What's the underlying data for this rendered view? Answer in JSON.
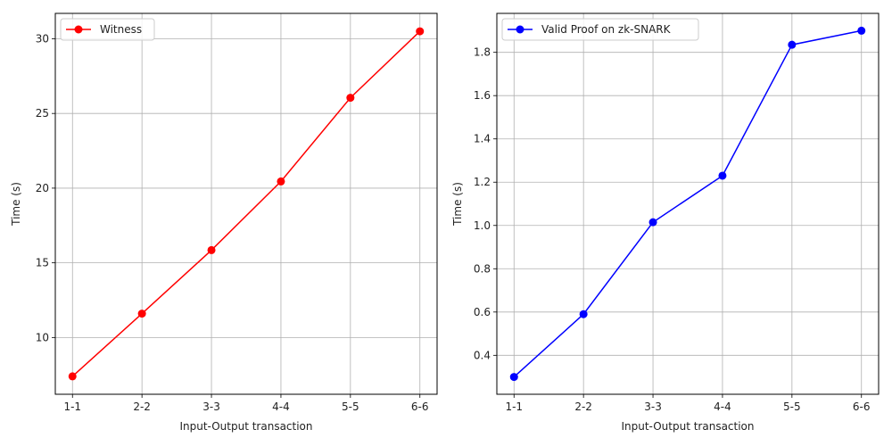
{
  "chart_data": [
    {
      "type": "line",
      "categories": [
        "1-1",
        "2-2",
        "3-3",
        "4-4",
        "5-5",
        "6-6"
      ],
      "series": [
        {
          "name": "Witness",
          "color": "#ff0000",
          "marker": "circle",
          "values": [
            7.4,
            11.6,
            15.85,
            20.45,
            26.05,
            30.5
          ]
        }
      ],
      "xlabel": "Input-Output transaction",
      "ylabel": "Time (s)",
      "ylim": [
        6.2,
        31.7
      ],
      "yticks": [
        10,
        15,
        20,
        25,
        30
      ],
      "ytick_labels": [
        "10",
        "15",
        "20",
        "25",
        "30"
      ],
      "grid": true,
      "legend_position": "upper-left"
    },
    {
      "type": "line",
      "categories": [
        "1-1",
        "2-2",
        "3-3",
        "4-4",
        "5-5",
        "6-6"
      ],
      "series": [
        {
          "name": "Valid Proof on zk-SNARK",
          "color": "#0000ff",
          "marker": "circle",
          "values": [
            0.3,
            0.59,
            1.015,
            1.23,
            1.835,
            1.9
          ]
        }
      ],
      "xlabel": "Input-Output transaction",
      "ylabel": "Time (s)",
      "ylim": [
        0.22,
        1.98
      ],
      "yticks": [
        0.4,
        0.6,
        0.8,
        1.0,
        1.2,
        1.4,
        1.6,
        1.8
      ],
      "ytick_labels": [
        "0.4",
        "0.6",
        "0.8",
        "1.0",
        "1.2",
        "1.4",
        "1.6",
        "1.8"
      ],
      "grid": true,
      "legend_position": "upper-left"
    }
  ]
}
